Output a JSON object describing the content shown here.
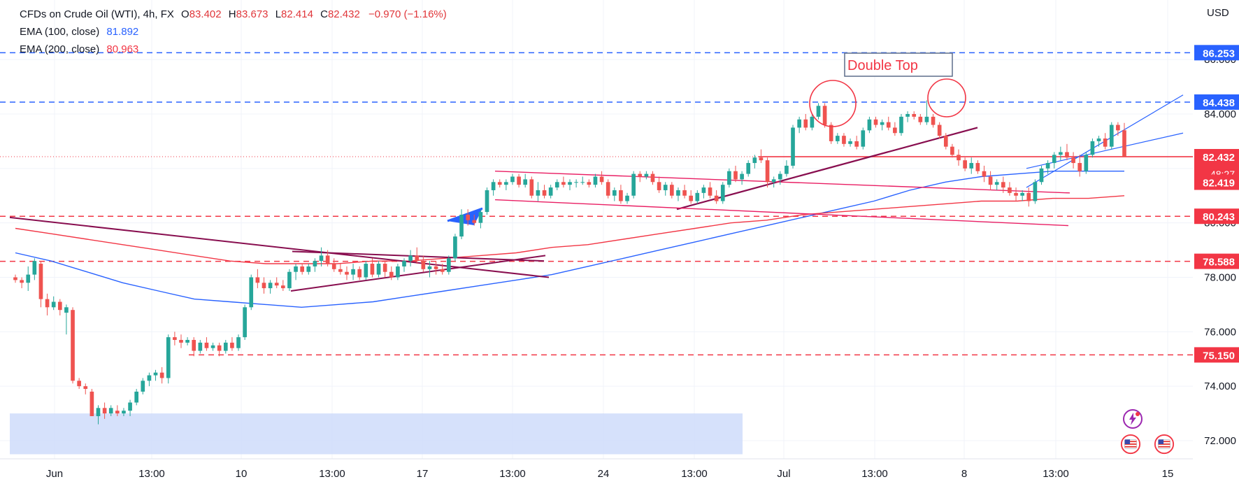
{
  "legend": {
    "symbol": "CFDs on Crude Oil (WTI), 4h, FX",
    "open_label": "O",
    "open": "83.402",
    "high_label": "H",
    "high": "83.673",
    "low_label": "L",
    "low": "82.414",
    "close_label": "C",
    "close": "82.432",
    "change": "−0.970 (−1.16%)",
    "ema100_label": "EMA (100, close)",
    "ema100_value": "81.892",
    "ema200_label": "EMA (200, close)",
    "ema200_value": "80.963"
  },
  "currency": "USD",
  "annotations": {
    "double_top": "Double Top"
  },
  "chart_data": {
    "type": "candlestick",
    "title": "CFDs on Crude Oil (WTI), 4h, FX",
    "ylim": [
      71.5,
      88.0
    ],
    "y_ticks": [
      "72.000",
      "74.000",
      "76.000",
      "78.000",
      "80.000",
      "82.000",
      "84.000",
      "86.000"
    ],
    "x_ticks": [
      "Jun",
      "13:00",
      "10",
      "13:00",
      "17",
      "13:00",
      "24",
      "13:00",
      "Jul",
      "13:00",
      "8",
      "13:00",
      "15"
    ],
    "price_labels": [
      {
        "value": 86.253,
        "text": "86.253",
        "color": "#2962ff"
      },
      {
        "value": 84.438,
        "text": "84.438",
        "color": "#2962ff"
      },
      {
        "value": 82.432,
        "text": "82.432",
        "color": "#f23645",
        "sub": "48:27"
      },
      {
        "value": 82.419,
        "text": "82.419",
        "color": "#f23645"
      },
      {
        "value": 80.243,
        "text": "80.243",
        "color": "#f23645"
      },
      {
        "value": 78.588,
        "text": "78.588",
        "color": "#f23645"
      },
      {
        "value": 75.15,
        "text": "75.150",
        "color": "#f23645"
      }
    ],
    "horizontal_levels": [
      {
        "value": 86.253,
        "style": "dashed",
        "color": "#2962ff"
      },
      {
        "value": 84.438,
        "style": "dashed",
        "color": "#2962ff"
      },
      {
        "value": 82.432,
        "style": "dotted",
        "color": "#f23645"
      },
      {
        "value": 80.243,
        "style": "dashed",
        "color": "#f23645"
      },
      {
        "value": 78.588,
        "style": "dashed",
        "color": "#f23645"
      },
      {
        "value": 75.15,
        "style": "dashed",
        "color": "#f23645"
      }
    ],
    "series": [
      {
        "name": "EMA (100, close)",
        "color": "#2962ff",
        "values": [
          78.9,
          78.6,
          78.2,
          77.8,
          77.5,
          77.2,
          77.1,
          77.0,
          76.9,
          77.0,
          77.1,
          77.3,
          77.5,
          77.7,
          77.9,
          78.1,
          78.4,
          78.7,
          79.0,
          79.3,
          79.6,
          79.9,
          80.2,
          80.5,
          80.8,
          81.2,
          81.5,
          81.7,
          81.8,
          81.9,
          81.9,
          81.9
        ]
      },
      {
        "name": "EMA (200, close)",
        "color": "#f23645",
        "values": [
          79.8,
          79.6,
          79.4,
          79.2,
          79.0,
          78.8,
          78.6,
          78.5,
          78.5,
          78.5,
          78.6,
          78.6,
          78.7,
          78.8,
          78.9,
          79.1,
          79.2,
          79.4,
          79.6,
          79.8,
          80.0,
          80.1,
          80.3,
          80.4,
          80.5,
          80.6,
          80.7,
          80.8,
          80.8,
          80.9,
          80.9,
          81.0
        ]
      }
    ],
    "candles_ohlc": [
      [
        78.0,
        78.1,
        77.8,
        77.9
      ],
      [
        77.9,
        78.0,
        77.6,
        77.8
      ],
      [
        77.8,
        78.4,
        77.5,
        78.1
      ],
      [
        78.1,
        78.7,
        77.9,
        78.6
      ],
      [
        78.5,
        78.6,
        76.9,
        77.2
      ],
      [
        77.2,
        77.4,
        76.6,
        76.9
      ],
      [
        76.9,
        77.3,
        76.8,
        77.1
      ],
      [
        77.1,
        77.2,
        76.6,
        76.8
      ],
      [
        76.7,
        77.0,
        75.9,
        76.9
      ],
      [
        76.8,
        76.9,
        74.1,
        74.2
      ],
      [
        74.2,
        74.3,
        73.9,
        74.0
      ],
      [
        74.0,
        74.1,
        73.7,
        73.9
      ],
      [
        73.8,
        73.9,
        72.9,
        72.9
      ],
      [
        72.9,
        73.3,
        72.6,
        73.2
      ],
      [
        73.2,
        73.4,
        72.8,
        73.0
      ],
      [
        73.0,
        73.3,
        72.9,
        73.2
      ],
      [
        73.1,
        73.3,
        72.9,
        73.0
      ],
      [
        73.0,
        73.2,
        72.9,
        73.1
      ],
      [
        73.1,
        73.5,
        72.9,
        73.4
      ],
      [
        73.4,
        73.9,
        73.3,
        73.8
      ],
      [
        73.8,
        74.3,
        73.7,
        74.2
      ],
      [
        74.2,
        74.5,
        74.0,
        74.4
      ],
      [
        74.4,
        74.6,
        74.2,
        74.5
      ],
      [
        74.5,
        74.7,
        74.1,
        74.3
      ],
      [
        74.3,
        75.9,
        74.1,
        75.8
      ],
      [
        75.8,
        76.0,
        75.5,
        75.7
      ],
      [
        75.7,
        75.9,
        75.4,
        75.6
      ],
      [
        75.6,
        75.8,
        75.5,
        75.7
      ],
      [
        75.7,
        75.8,
        75.1,
        75.3
      ],
      [
        75.3,
        75.7,
        75.2,
        75.6
      ],
      [
        75.6,
        75.8,
        75.3,
        75.4
      ],
      [
        75.4,
        75.6,
        75.3,
        75.5
      ],
      [
        75.5,
        75.6,
        75.1,
        75.3
      ],
      [
        75.3,
        75.7,
        75.2,
        75.6
      ],
      [
        75.6,
        75.8,
        75.3,
        75.4
      ],
      [
        75.4,
        75.9,
        75.3,
        75.8
      ],
      [
        75.8,
        77.0,
        75.7,
        76.9
      ],
      [
        76.9,
        78.1,
        76.8,
        78.0
      ],
      [
        78.0,
        78.3,
        77.6,
        77.8
      ],
      [
        77.8,
        78.0,
        77.4,
        77.6
      ],
      [
        77.6,
        77.9,
        77.4,
        77.8
      ],
      [
        77.8,
        78.0,
        77.6,
        77.7
      ],
      [
        77.7,
        77.9,
        77.5,
        77.6
      ],
      [
        77.6,
        78.3,
        77.5,
        78.2
      ],
      [
        78.2,
        78.5,
        77.9,
        78.4
      ],
      [
        78.4,
        78.5,
        78.1,
        78.2
      ],
      [
        78.2,
        78.5,
        78.1,
        78.4
      ],
      [
        78.4,
        78.7,
        78.2,
        78.6
      ],
      [
        78.6,
        79.1,
        78.4,
        78.8
      ],
      [
        78.8,
        79.0,
        78.4,
        78.5
      ],
      [
        78.5,
        78.7,
        78.2,
        78.3
      ],
      [
        78.3,
        78.5,
        78.1,
        78.2
      ],
      [
        78.2,
        78.4,
        77.9,
        78.1
      ],
      [
        78.1,
        78.5,
        77.9,
        78.3
      ],
      [
        78.3,
        78.4,
        77.9,
        78.0
      ],
      [
        78.0,
        78.6,
        77.9,
        78.5
      ],
      [
        78.5,
        78.7,
        78.0,
        78.1
      ],
      [
        78.1,
        78.6,
        78.0,
        78.5
      ],
      [
        78.5,
        78.6,
        78.0,
        78.2
      ],
      [
        78.2,
        78.4,
        77.9,
        78.0
      ],
      [
        78.0,
        78.5,
        77.9,
        78.4
      ],
      [
        78.4,
        78.7,
        78.2,
        78.6
      ],
      [
        78.6,
        79.0,
        78.4,
        78.8
      ],
      [
        78.8,
        79.1,
        78.5,
        78.6
      ],
      [
        78.6,
        78.8,
        78.2,
        78.3
      ],
      [
        78.3,
        78.6,
        78.0,
        78.4
      ],
      [
        78.4,
        78.6,
        78.1,
        78.3
      ],
      [
        78.3,
        78.5,
        78.1,
        78.2
      ],
      [
        78.2,
        78.8,
        78.1,
        78.7
      ],
      [
        78.7,
        79.6,
        78.6,
        79.5
      ],
      [
        79.5,
        80.5,
        79.4,
        80.3
      ],
      [
        80.3,
        80.5,
        79.9,
        80.1
      ],
      [
        80.1,
        80.3,
        79.9,
        80.0
      ],
      [
        80.0,
        80.5,
        79.8,
        80.4
      ],
      [
        80.4,
        81.3,
        80.3,
        81.2
      ],
      [
        81.2,
        81.6,
        81.0,
        81.5
      ],
      [
        81.5,
        81.6,
        81.3,
        81.4
      ],
      [
        81.4,
        81.6,
        81.2,
        81.5
      ],
      [
        81.5,
        81.8,
        81.4,
        81.7
      ],
      [
        81.7,
        81.8,
        81.3,
        81.4
      ],
      [
        81.4,
        81.8,
        81.3,
        81.6
      ],
      [
        81.6,
        81.7,
        80.9,
        81.0
      ],
      [
        81.0,
        81.5,
        80.8,
        81.2
      ],
      [
        81.2,
        81.4,
        80.9,
        81.0
      ],
      [
        81.0,
        81.4,
        80.9,
        81.3
      ],
      [
        81.3,
        81.6,
        81.2,
        81.5
      ],
      [
        81.5,
        81.7,
        81.3,
        81.4
      ],
      [
        81.4,
        81.6,
        81.2,
        81.5
      ],
      [
        81.5,
        81.6,
        81.3,
        81.5
      ],
      [
        81.5,
        81.7,
        81.4,
        81.5
      ],
      [
        81.5,
        81.6,
        81.3,
        81.4
      ],
      [
        81.4,
        81.8,
        81.3,
        81.7
      ],
      [
        81.7,
        81.9,
        81.4,
        81.5
      ],
      [
        81.5,
        81.6,
        80.9,
        81.0
      ],
      [
        81.0,
        81.3,
        80.8,
        81.2
      ],
      [
        81.2,
        81.4,
        80.7,
        80.8
      ],
      [
        80.8,
        81.1,
        80.7,
        81.0
      ],
      [
        81.0,
        81.9,
        80.9,
        81.8
      ],
      [
        81.8,
        81.9,
        81.5,
        81.7
      ],
      [
        81.7,
        81.9,
        81.6,
        81.8
      ],
      [
        81.8,
        81.9,
        81.4,
        81.5
      ],
      [
        81.5,
        81.7,
        81.1,
        81.2
      ],
      [
        81.2,
        81.5,
        81.0,
        81.4
      ],
      [
        81.4,
        81.5,
        80.9,
        81.0
      ],
      [
        81.0,
        81.3,
        80.8,
        81.2
      ],
      [
        81.2,
        81.4,
        80.9,
        81.0
      ],
      [
        81.0,
        81.2,
        80.7,
        80.8
      ],
      [
        80.8,
        81.2,
        80.7,
        81.1
      ],
      [
        81.1,
        81.4,
        80.9,
        81.3
      ],
      [
        81.3,
        81.5,
        80.9,
        81.0
      ],
      [
        81.0,
        81.2,
        80.7,
        80.8
      ],
      [
        80.8,
        81.5,
        80.7,
        81.4
      ],
      [
        81.4,
        82.0,
        81.3,
        81.9
      ],
      [
        81.9,
        82.1,
        81.5,
        81.6
      ],
      [
        81.6,
        81.9,
        81.4,
        81.8
      ],
      [
        81.8,
        82.3,
        81.7,
        82.2
      ],
      [
        82.2,
        82.5,
        82.0,
        82.4
      ],
      [
        82.4,
        82.7,
        82.2,
        82.3
      ],
      [
        82.3,
        82.4,
        81.3,
        81.5
      ],
      [
        81.5,
        81.7,
        81.3,
        81.6
      ],
      [
        81.6,
        81.9,
        81.4,
        81.8
      ],
      [
        81.8,
        82.3,
        81.7,
        82.1
      ],
      [
        82.1,
        83.6,
        82.0,
        83.5
      ],
      [
        83.5,
        83.9,
        83.3,
        83.8
      ],
      [
        83.8,
        84.0,
        83.4,
        83.5
      ],
      [
        83.5,
        84.0,
        83.4,
        83.9
      ],
      [
        83.9,
        84.4,
        83.8,
        84.3
      ],
      [
        84.3,
        84.4,
        83.5,
        83.6
      ],
      [
        83.6,
        83.7,
        82.9,
        83.0
      ],
      [
        83.0,
        83.3,
        82.9,
        83.2
      ],
      [
        83.2,
        83.3,
        82.8,
        82.9
      ],
      [
        82.9,
        83.1,
        82.8,
        83.0
      ],
      [
        83.0,
        83.2,
        82.7,
        82.8
      ],
      [
        82.8,
        83.5,
        82.7,
        83.4
      ],
      [
        83.4,
        83.9,
        83.3,
        83.8
      ],
      [
        83.8,
        83.9,
        83.5,
        83.6
      ],
      [
        83.6,
        83.8,
        83.4,
        83.7
      ],
      [
        83.7,
        83.9,
        83.4,
        83.5
      ],
      [
        83.5,
        83.7,
        83.2,
        83.3
      ],
      [
        83.3,
        84.0,
        83.2,
        83.9
      ],
      [
        83.9,
        84.1,
        83.7,
        84.0
      ],
      [
        84.0,
        84.1,
        83.8,
        83.9
      ],
      [
        83.9,
        84.0,
        83.6,
        83.7
      ],
      [
        83.7,
        84.5,
        83.6,
        83.9
      ],
      [
        83.9,
        84.0,
        83.5,
        83.6
      ],
      [
        83.6,
        83.7,
        83.1,
        83.2
      ],
      [
        83.2,
        83.3,
        82.7,
        82.8
      ],
      [
        82.8,
        82.9,
        82.4,
        82.5
      ],
      [
        82.5,
        82.7,
        82.1,
        82.3
      ],
      [
        82.3,
        82.4,
        81.9,
        82.0
      ],
      [
        82.0,
        82.4,
        81.8,
        82.2
      ],
      [
        82.2,
        82.3,
        81.8,
        81.9
      ],
      [
        81.9,
        82.1,
        81.5,
        81.7
      ],
      [
        81.7,
        81.9,
        81.2,
        81.4
      ],
      [
        81.4,
        81.6,
        81.2,
        81.5
      ],
      [
        81.5,
        81.7,
        81.1,
        81.3
      ],
      [
        81.3,
        81.5,
        81.0,
        81.1
      ],
      [
        81.1,
        81.3,
        80.8,
        81.0
      ],
      [
        81.0,
        81.2,
        80.8,
        81.1
      ],
      [
        81.1,
        81.3,
        80.6,
        80.8
      ],
      [
        80.8,
        81.6,
        80.7,
        81.5
      ],
      [
        81.5,
        82.1,
        81.4,
        82.0
      ],
      [
        82.0,
        82.3,
        81.8,
        82.2
      ],
      [
        82.2,
        82.6,
        82.0,
        82.5
      ],
      [
        82.5,
        82.8,
        82.3,
        82.6
      ],
      [
        82.6,
        82.9,
        82.3,
        82.4
      ],
      [
        82.4,
        82.6,
        82.0,
        82.2
      ],
      [
        82.2,
        82.5,
        81.7,
        81.9
      ],
      [
        81.9,
        82.6,
        81.8,
        82.5
      ],
      [
        82.5,
        83.1,
        82.4,
        83.0
      ],
      [
        83.0,
        83.2,
        82.8,
        83.1
      ],
      [
        83.1,
        83.3,
        82.7,
        82.8
      ],
      [
        82.8,
        83.7,
        82.7,
        83.6
      ],
      [
        83.6,
        83.7,
        83.2,
        83.4
      ],
      [
        83.402,
        83.673,
        82.414,
        82.432
      ]
    ]
  }
}
